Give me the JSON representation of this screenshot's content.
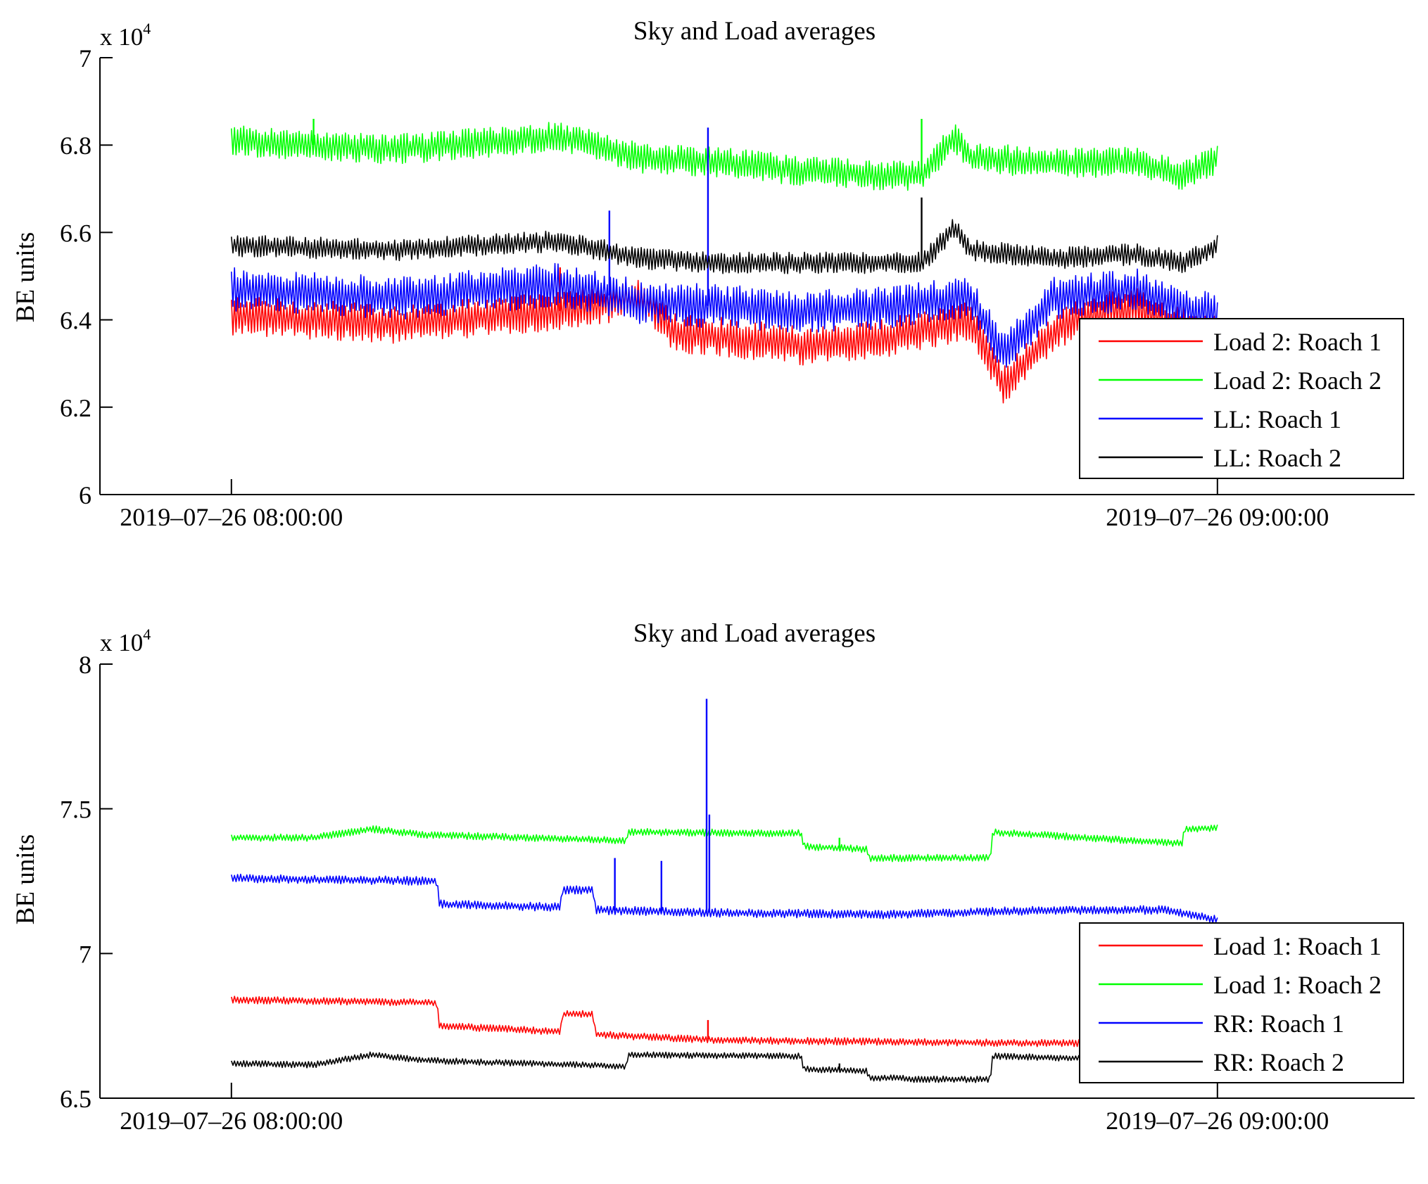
{
  "colors": {
    "red": "#ff0000",
    "green": "#00ff00",
    "blue": "#0000ff",
    "black": "#000000"
  },
  "chart_data": [
    {
      "type": "line",
      "title": "Sky and Load averages",
      "ylabel": "BE units",
      "exponent_label": "x 10",
      "exponent_power": "4",
      "ylim": [
        60000,
        70000
      ],
      "yticks": [
        60000,
        62000,
        64000,
        66000,
        68000,
        70000
      ],
      "ytick_labels": [
        "6",
        "6.2",
        "6.4",
        "6.6",
        "6.8",
        "7"
      ],
      "xlim": [
        "2019-07-26 07:52:00",
        "2019-07-26 09:12:00"
      ],
      "xticks": [
        "2019-07-26 08:00:00",
        "2019-07-26 09:00:00"
      ],
      "xtick_labels": [
        "2019–07–26 08:00:00",
        "2019–07–26 09:00:00"
      ],
      "legend_position": "bottom-right",
      "series": [
        {
          "name": "Load 2: Roach 1",
          "color": "#ff0000",
          "band": 900,
          "t": [
            "2019-07-26 08:00:00",
            "2019-07-26 08:10:00",
            "2019-07-26 08:20:00",
            "2019-07-26 08:25:00",
            "2019-07-26 08:27:00",
            "2019-07-26 08:30:00",
            "2019-07-26 08:35:00",
            "2019-07-26 08:40:00",
            "2019-07-26 08:45:00",
            "2019-07-26 08:47:00",
            "2019-07-26 08:50:00",
            "2019-07-26 08:52:00",
            "2019-07-26 08:55:00",
            "2019-07-26 08:57:00",
            "2019-07-26 09:00:00"
          ],
          "values": [
            64100,
            63900,
            64200,
            64500,
            63700,
            63600,
            63400,
            63600,
            64000,
            62500,
            63700,
            64100,
            64300,
            63900,
            63700
          ],
          "spikes": [
            {
              "t": "2019-07-26 08:20:00",
              "value": 65200
            }
          ]
        },
        {
          "name": "Load 2: Roach 2",
          "color": "#00ff00",
          "band": 700,
          "t": [
            "2019-07-26 08:00:00",
            "2019-07-26 08:10:00",
            "2019-07-26 08:20:00",
            "2019-07-26 08:25:00",
            "2019-07-26 08:30:00",
            "2019-07-26 08:35:00",
            "2019-07-26 08:40:00",
            "2019-07-26 08:42:00",
            "2019-07-26 08:44:00",
            "2019-07-26 08:45:00",
            "2019-07-26 08:50:00",
            "2019-07-26 08:55:00",
            "2019-07-26 08:58:00",
            "2019-07-26 09:00:00"
          ],
          "values": [
            68100,
            67900,
            68200,
            67700,
            67600,
            67400,
            67300,
            67300,
            68200,
            67700,
            67600,
            67600,
            67300,
            67700
          ],
          "spikes": [
            {
              "t": "2019-07-26 08:05:00",
              "value": 68600
            },
            {
              "t": "2019-07-26 08:42:00",
              "value": 68600
            }
          ]
        },
        {
          "name": "LL: Roach 1",
          "color": "#0000ff",
          "band": 1000,
          "t": [
            "2019-07-26 08:00:00",
            "2019-07-26 08:10:00",
            "2019-07-26 08:20:00",
            "2019-07-26 08:25:00",
            "2019-07-26 08:30:00",
            "2019-07-26 08:35:00",
            "2019-07-26 08:40:00",
            "2019-07-26 08:45:00",
            "2019-07-26 08:47:00",
            "2019-07-26 08:50:00",
            "2019-07-26 08:55:00",
            "2019-07-26 08:57:00",
            "2019-07-26 09:00:00"
          ],
          "values": [
            64700,
            64500,
            64800,
            64400,
            64300,
            64200,
            64300,
            64500,
            63200,
            64500,
            64700,
            64300,
            64100
          ],
          "spikes": [
            {
              "t": "2019-07-26 08:23:00",
              "value": 66500
            },
            {
              "t": "2019-07-26 08:29:00",
              "value": 68400
            }
          ]
        },
        {
          "name": "LL: Roach 2",
          "color": "#000000",
          "band": 500,
          "t": [
            "2019-07-26 08:00:00",
            "2019-07-26 08:10:00",
            "2019-07-26 08:20:00",
            "2019-07-26 08:25:00",
            "2019-07-26 08:30:00",
            "2019-07-26 08:35:00",
            "2019-07-26 08:40:00",
            "2019-07-26 08:42:00",
            "2019-07-26 08:44:00",
            "2019-07-26 08:45:00",
            "2019-07-26 08:50:00",
            "2019-07-26 08:55:00",
            "2019-07-26 08:58:00",
            "2019-07-26 09:00:00"
          ],
          "values": [
            65700,
            65600,
            65800,
            65400,
            65300,
            65300,
            65300,
            65300,
            66100,
            65600,
            65400,
            65500,
            65300,
            65700
          ],
          "spikes": [
            {
              "t": "2019-07-26 08:42:00",
              "value": 66800
            }
          ]
        }
      ]
    },
    {
      "type": "line",
      "title": "Sky and Load averages",
      "ylabel": "BE units",
      "exponent_label": "x 10",
      "exponent_power": "4",
      "ylim": [
        65000,
        80000
      ],
      "yticks": [
        65000,
        70000,
        75000,
        80000
      ],
      "ytick_labels": [
        "6.5",
        "7",
        "7.5",
        "8"
      ],
      "xlim": [
        "2019-07-26 07:52:00",
        "2019-07-26 09:12:00"
      ],
      "xticks": [
        "2019-07-26 08:00:00",
        "2019-07-26 09:00:00"
      ],
      "xtick_labels": [
        "2019–07–26 08:00:00",
        "2019–07–26 09:00:00"
      ],
      "legend_position": "bottom-right",
      "series": [
        {
          "name": "Load 1: Roach 1",
          "color": "#ff0000",
          "band": 250,
          "t": [
            "2019-07-26 08:00:00",
            "2019-07-26 08:12:30",
            "2019-07-26 08:12:40",
            "2019-07-26 08:20:00",
            "2019-07-26 08:20:10",
            "2019-07-26 08:22:00",
            "2019-07-26 08:22:10",
            "2019-07-26 08:30:00",
            "2019-07-26 08:40:00",
            "2019-07-26 08:50:00",
            "2019-07-26 09:00:00"
          ],
          "values": [
            68400,
            68300,
            67500,
            67300,
            67900,
            67900,
            67200,
            67000,
            66950,
            66900,
            66900
          ],
          "spikes": [
            {
              "t": "2019-07-26 08:29:00",
              "value": 67700
            }
          ]
        },
        {
          "name": "Load 1: Roach 2",
          "color": "#00ff00",
          "band": 250,
          "t": [
            "2019-07-26 08:00:00",
            "2019-07-26 08:05:00",
            "2019-07-26 08:08:30",
            "2019-07-26 08:12:00",
            "2019-07-26 08:24:00",
            "2019-07-26 08:24:10",
            "2019-07-26 08:34:40",
            "2019-07-26 08:34:50",
            "2019-07-26 08:38:40",
            "2019-07-26 08:38:50",
            "2019-07-26 08:40:50",
            "2019-07-26 08:41:00",
            "2019-07-26 08:46:10",
            "2019-07-26 08:46:20",
            "2019-07-26 08:57:50",
            "2019-07-26 08:58:00",
            "2019-07-26 09:00:00"
          ],
          "values": [
            74000,
            74000,
            74300,
            74100,
            73900,
            74200,
            74150,
            73700,
            73600,
            73300,
            73300,
            73300,
            73300,
            74200,
            73800,
            74300,
            74350
          ],
          "spikes": [
            {
              "t": "2019-07-26 08:37:00",
              "value": 74000
            }
          ]
        },
        {
          "name": "RR: Roach 1",
          "color": "#0000ff",
          "band": 300,
          "t": [
            "2019-07-26 08:00:00",
            "2019-07-26 08:12:30",
            "2019-07-26 08:12:40",
            "2019-07-26 08:20:00",
            "2019-07-26 08:20:10",
            "2019-07-26 08:22:00",
            "2019-07-26 08:22:10",
            "2019-07-26 08:30:00",
            "2019-07-26 08:40:00",
            "2019-07-26 08:50:00",
            "2019-07-26 08:57:00",
            "2019-07-26 09:00:00"
          ],
          "values": [
            72600,
            72500,
            71700,
            71600,
            72200,
            72200,
            71500,
            71400,
            71350,
            71500,
            71500,
            71150
          ],
          "spikes": [
            {
              "t": "2019-07-26 08:23:20",
              "value": 73300
            },
            {
              "t": "2019-07-26 08:26:10",
              "value": 73200
            },
            {
              "t": "2019-07-26 08:28:55",
              "value": 78800
            },
            {
              "t": "2019-07-26 08:29:05",
              "value": 74800
            }
          ]
        },
        {
          "name": "RR: Roach 2",
          "color": "#000000",
          "band": 220,
          "t": [
            "2019-07-26 08:00:00",
            "2019-07-26 08:05:00",
            "2019-07-26 08:08:30",
            "2019-07-26 08:12:00",
            "2019-07-26 08:24:00",
            "2019-07-26 08:24:10",
            "2019-07-26 08:34:40",
            "2019-07-26 08:34:50",
            "2019-07-26 08:38:40",
            "2019-07-26 08:38:50",
            "2019-07-26 08:40:50",
            "2019-07-26 08:41:00",
            "2019-07-26 08:46:10",
            "2019-07-26 08:46:20",
            "2019-07-26 08:57:50",
            "2019-07-26 08:58:00",
            "2019-07-26 09:00:00"
          ],
          "values": [
            66200,
            66150,
            66500,
            66300,
            66100,
            66500,
            66450,
            66000,
            65950,
            65700,
            65700,
            65650,
            65650,
            66450,
            66300,
            66400,
            66400
          ],
          "spikes": [
            {
              "t": "2019-07-26 08:37:00",
              "value": 66200
            }
          ]
        }
      ]
    }
  ]
}
